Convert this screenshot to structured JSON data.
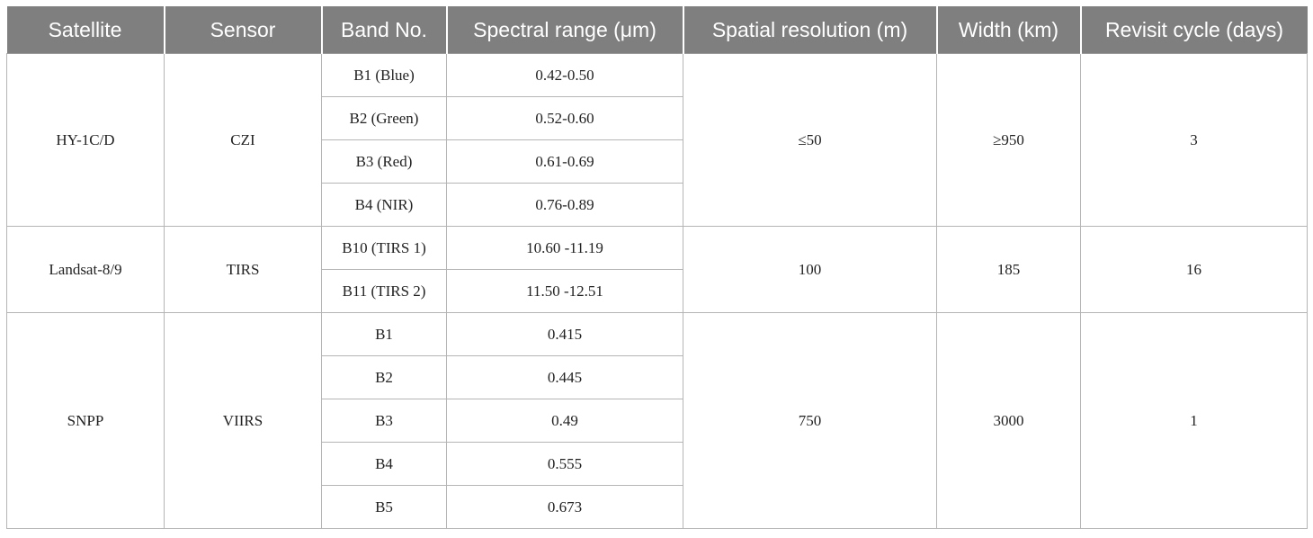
{
  "table": {
    "headers": [
      "Satellite",
      "Sensor",
      "Band No.",
      "Spectral range (μm)",
      "Spatial resolution (m)",
      "Width (km)",
      "Revisit cycle (days)"
    ],
    "groups": [
      {
        "satellite": "HY-1C/D",
        "sensor": "CZI",
        "spatial_resolution": "≤50",
        "width": "≥950",
        "revisit": "3",
        "bands": [
          {
            "band": "B1 (Blue)",
            "range": "0.42-0.50"
          },
          {
            "band": "B2 (Green)",
            "range": "0.52-0.60"
          },
          {
            "band": "B3 (Red)",
            "range": "0.61-0.69"
          },
          {
            "band": "B4 (NIR)",
            "range": "0.76-0.89"
          }
        ]
      },
      {
        "satellite": "Landsat-8/9",
        "sensor": "TIRS",
        "spatial_resolution": "100",
        "width": "185",
        "revisit": "16",
        "bands": [
          {
            "band": "B10 (TIRS 1)",
            "range": "10.60 -11.19"
          },
          {
            "band": "B11 (TIRS 2)",
            "range": "11.50 -12.51"
          }
        ]
      },
      {
        "satellite": "SNPP",
        "sensor": "VIIRS",
        "spatial_resolution": "750",
        "width": "3000",
        "revisit": "1",
        "bands": [
          {
            "band": "B1",
            "range": "0.415"
          },
          {
            "band": "B2",
            "range": "0.445"
          },
          {
            "band": "B3",
            "range": "0.49"
          },
          {
            "band": "B4",
            "range": "0.555"
          },
          {
            "band": "B5",
            "range": "0.673"
          }
        ]
      }
    ]
  }
}
